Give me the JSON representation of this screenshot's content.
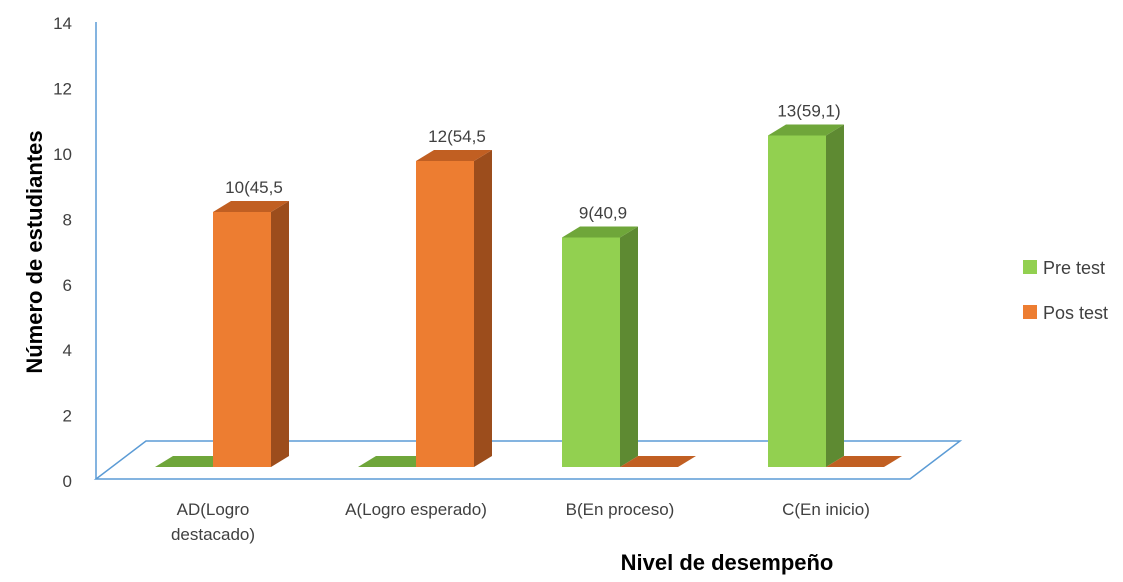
{
  "chart_data": {
    "type": "bar",
    "categories": [
      [
        "AD(Logro",
        "destacado)"
      ],
      [
        "A(Logro esperado)"
      ],
      [
        "B(En proceso)"
      ],
      [
        "C(En inicio)"
      ]
    ],
    "series": [
      {
        "name": "Pre test",
        "values": [
          0,
          0,
          9,
          13
        ],
        "labels": [
          "",
          "",
          "9(40,9",
          "13(59,1)"
        ],
        "color": "#92d050",
        "side_color": "#5e8a32",
        "top_color": "#6fa63a"
      },
      {
        "name": "Pos test",
        "values": [
          10,
          12,
          0,
          0
        ],
        "labels": [
          "10(45,5",
          "12(54,5",
          "",
          ""
        ],
        "color": "#ed7d31",
        "side_color": "#9c4d1c",
        "top_color": "#c15f22"
      }
    ],
    "title": "",
    "xlabel": "Nivel de desempeño",
    "ylabel": "Número de estudiantes",
    "ylim": [
      0,
      14
    ],
    "yticks": [
      0,
      2,
      4,
      6,
      8,
      10,
      12,
      14
    ],
    "legend": "right",
    "grid": false,
    "floor_color": "#5b9bd5"
  }
}
